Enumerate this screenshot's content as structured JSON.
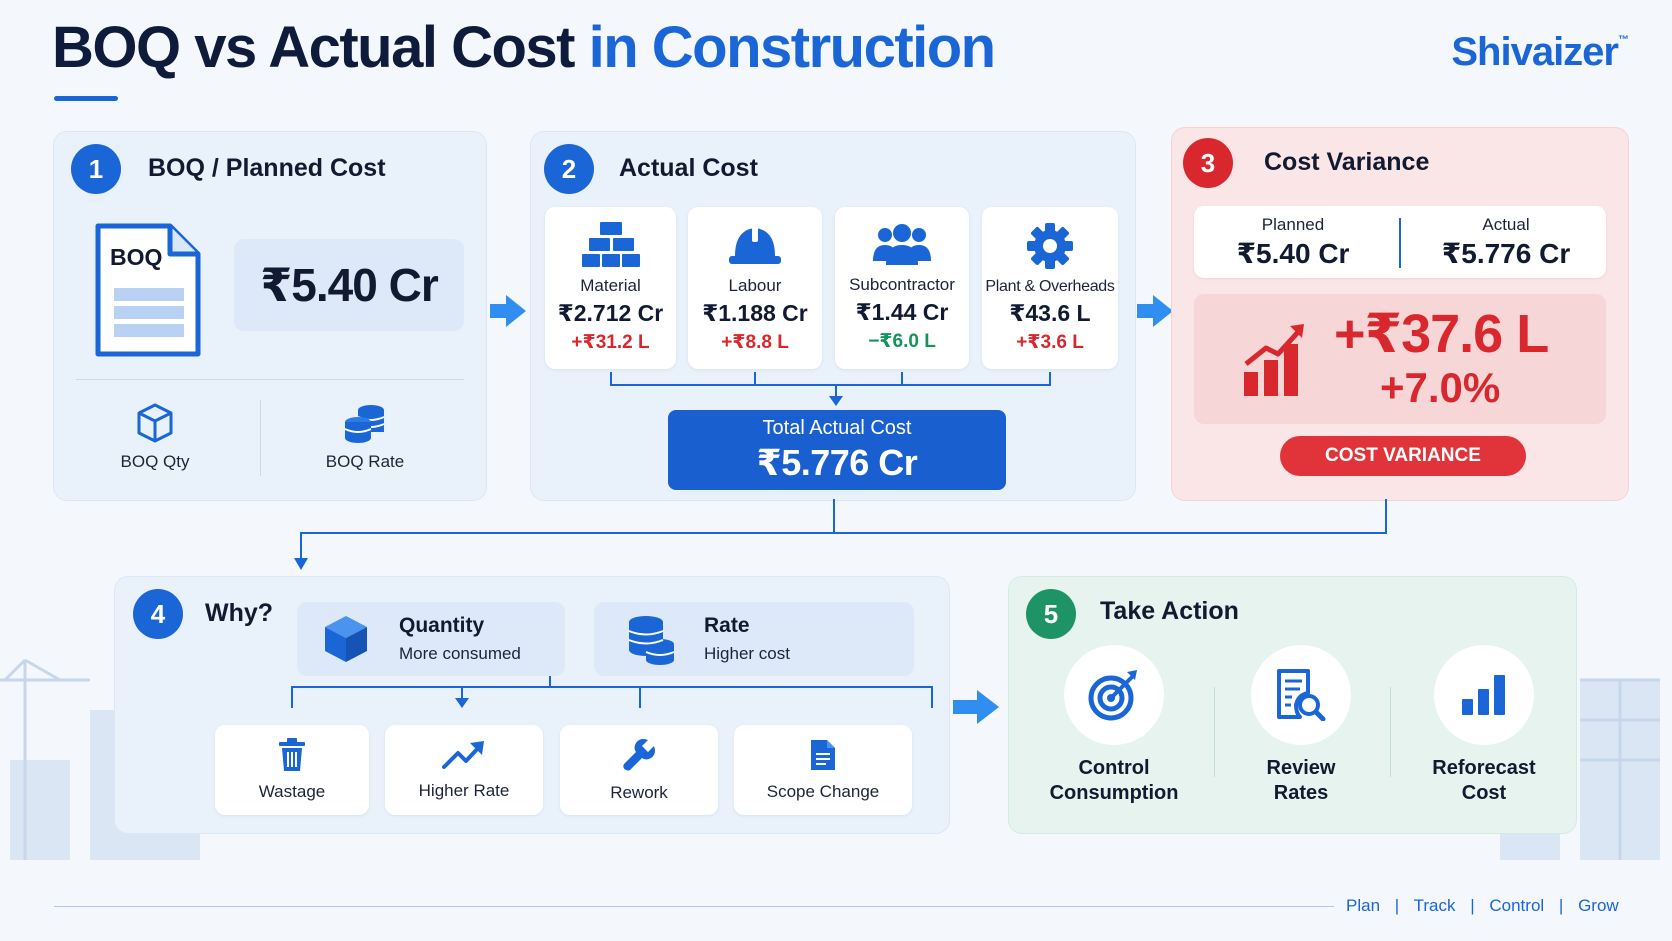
{
  "header": {
    "title_main": "BOQ vs Actual Cost",
    "title_accent": "in Construction",
    "brand": "Shivaizer",
    "brand_mark": "™"
  },
  "boq": {
    "number": "1",
    "title": "BOQ / Planned Cost",
    "doc_label": "BOQ",
    "amount": "₹5.40 Cr",
    "qty_label": "BOQ Qty",
    "rate_label": "BOQ Rate"
  },
  "actual": {
    "number": "2",
    "title": "Actual Cost",
    "items": [
      {
        "label": "Material",
        "value": "₹2.712 Cr",
        "delta": "+₹31.2 L",
        "icon": "bricks-icon"
      },
      {
        "label": "Labour",
        "value": "₹1.188 Cr",
        "delta": "+₹8.8 L",
        "icon": "hard-hat-icon"
      },
      {
        "label": "Subcontractor",
        "value": "₹1.44 Cr",
        "delta": "−₹6.0 L",
        "icon": "team-icon"
      },
      {
        "label": "Plant & Overheads",
        "value": "₹43.6 L",
        "delta": "+₹3.6 L",
        "icon": "gear-icon"
      }
    ],
    "total_label": "Total Actual Cost",
    "total_value": "₹5.776 Cr"
  },
  "variance": {
    "number": "3",
    "title": "Cost Variance",
    "planned_label": "Planned",
    "planned_value": "₹5.40 Cr",
    "actual_label": "Actual",
    "actual_value": "₹5.776 Cr",
    "amount": "+₹37.6 L",
    "percent": "+7.0%",
    "badge": "COST VARIANCE"
  },
  "why": {
    "number": "4",
    "title": "Why?",
    "quantity_title": "Quantity",
    "quantity_sub": "More consumed",
    "rate_title": "Rate",
    "rate_sub": "Higher cost",
    "causes": [
      "Wastage",
      "Higher Rate",
      "Rework",
      "Scope Change"
    ]
  },
  "action": {
    "number": "5",
    "title": "Take Action",
    "items": [
      {
        "line1": "Control",
        "line2": "Consumption"
      },
      {
        "line1": "Review",
        "line2": "Rates"
      },
      {
        "line1": "Reforecast",
        "line2": "Cost"
      }
    ]
  },
  "footer": {
    "items": [
      "Plan",
      "Track",
      "Control",
      "Grow"
    ],
    "separator": "|"
  },
  "colors": {
    "blue": "#1a66d6",
    "red": "#d8282e",
    "green": "#15935a"
  }
}
